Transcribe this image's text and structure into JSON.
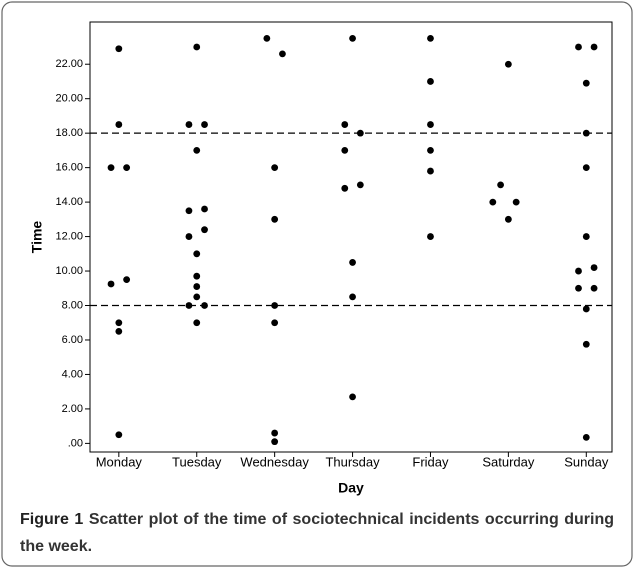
{
  "chart_data": {
    "type": "scatter",
    "x_label": "Day",
    "y_label": "Time",
    "caption_label": "Figure 1",
    "caption_text": "Scatter plot of the time of sociotechnical incidents occurring during the week.",
    "xlim": [
      -0.37,
      6.33
    ],
    "xticks": [
      {
        "value": 0,
        "label": "Monday"
      },
      {
        "value": 1,
        "label": "Tuesday"
      },
      {
        "value": 2,
        "label": "Wednesday"
      },
      {
        "value": 3,
        "label": "Thursday"
      },
      {
        "value": 4,
        "label": "Friday"
      },
      {
        "value": 5,
        "label": "Saturday"
      },
      {
        "value": 6,
        "label": "Sunday"
      }
    ],
    "ylim": [
      -0.5,
      24.45
    ],
    "yticks": [
      {
        "value": 0,
        "label": ".00"
      },
      {
        "value": 2,
        "label": "2.00"
      },
      {
        "value": 4,
        "label": "4.00"
      },
      {
        "value": 6,
        "label": "6.00"
      },
      {
        "value": 8,
        "label": "8.00"
      },
      {
        "value": 10,
        "label": "10.00"
      },
      {
        "value": 12,
        "label": "12.00"
      },
      {
        "value": 14,
        "label": "14.00"
      },
      {
        "value": 16,
        "label": "16.00"
      },
      {
        "value": 18,
        "label": "18.00"
      },
      {
        "value": 20,
        "label": "20.00"
      },
      {
        "value": 22,
        "label": "22.00"
      }
    ],
    "reference_lines": [
      8,
      18
    ],
    "series": [
      {
        "color": "#000000",
        "x": [
          0,
          0,
          -0.1,
          0.1,
          -0.1,
          0.1,
          0,
          0,
          0,
          1,
          0.9,
          1.1,
          1,
          0.9,
          1.1,
          0.9,
          1.1,
          1,
          1,
          1,
          1,
          0.9,
          1.1,
          1,
          1.9,
          2.1,
          2,
          2,
          2,
          2,
          2,
          2,
          3,
          2.9,
          3.1,
          2.9,
          2.9,
          3.1,
          3,
          3,
          3,
          4,
          4,
          4,
          4,
          4,
          4,
          5,
          4.9,
          4.8,
          5.1,
          5,
          5.9,
          6.1,
          6,
          6,
          6,
          6,
          5.9,
          6.1,
          5.9,
          6.1,
          6,
          6,
          6
        ],
        "values": [
          22.9,
          18.5,
          16,
          16,
          9.25,
          9.5,
          7,
          6.5,
          0.5,
          23,
          18.5,
          18.5,
          17,
          13.5,
          13.6,
          12,
          12.4,
          11,
          9.7,
          9.1,
          8.5,
          8,
          8,
          7,
          23.5,
          22.6,
          16,
          13,
          8,
          7,
          0.6,
          0.1,
          23.5,
          18.5,
          18,
          17,
          14.8,
          15,
          10.5,
          8.5,
          2.7,
          23.5,
          21,
          18.5,
          17,
          15.8,
          12,
          22,
          15,
          14,
          14,
          13,
          23,
          23,
          20.9,
          18,
          16,
          12,
          10,
          10.2,
          9,
          9,
          7.8,
          5.75,
          0.35
        ]
      }
    ]
  }
}
